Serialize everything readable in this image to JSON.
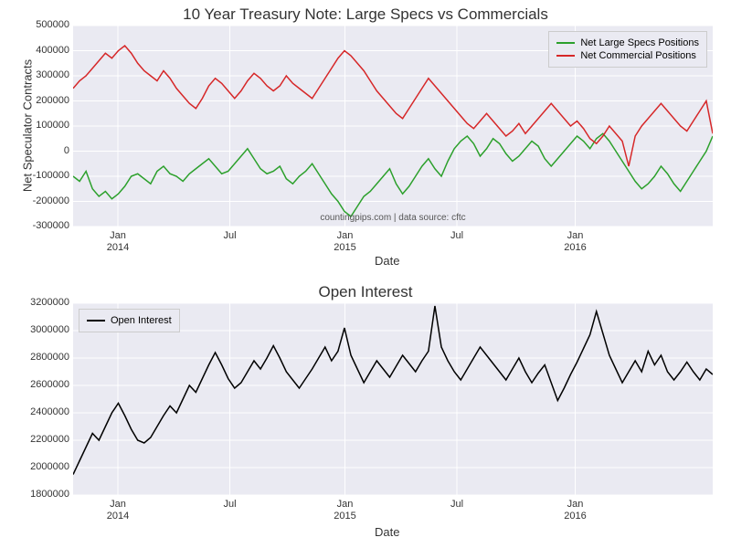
{
  "chart1": {
    "type": "line",
    "title": "10 Year Treasury Note: Large Specs vs Commercials",
    "title_fontsize": 17,
    "xlabel": "Date",
    "ylabel": "Net Speculator Contracts",
    "label_fontsize": 13,
    "background_color": "#eaeaf2",
    "grid_color": "#ffffff",
    "ylim": [
      -300000,
      500000
    ],
    "yticks": [
      -300000,
      -200000,
      -100000,
      0,
      100000,
      200000,
      300000,
      400000,
      500000
    ],
    "xticks_major": [
      "Jan\n2014",
      "Jul",
      "Jan\n2015",
      "Jul",
      "Jan\n2016"
    ],
    "xtick_positions": [
      0.07,
      0.245,
      0.425,
      0.6,
      0.785
    ],
    "annotation": "countingpips.com | data source: cftc",
    "legend_position": "top-right",
    "series": [
      {
        "label": "Net Large Specs Positions",
        "color": "#2ca02c",
        "line_width": 1.5,
        "values": [
          -100000,
          -120000,
          -80000,
          -150000,
          -180000,
          -160000,
          -190000,
          -170000,
          -140000,
          -100000,
          -90000,
          -110000,
          -130000,
          -80000,
          -60000,
          -90000,
          -100000,
          -120000,
          -90000,
          -70000,
          -50000,
          -30000,
          -60000,
          -90000,
          -80000,
          -50000,
          -20000,
          10000,
          -30000,
          -70000,
          -90000,
          -80000,
          -60000,
          -110000,
          -130000,
          -100000,
          -80000,
          -50000,
          -90000,
          -130000,
          -170000,
          -200000,
          -240000,
          -260000,
          -220000,
          -180000,
          -160000,
          -130000,
          -100000,
          -70000,
          -130000,
          -170000,
          -140000,
          -100000,
          -60000,
          -30000,
          -70000,
          -100000,
          -40000,
          10000,
          40000,
          60000,
          30000,
          -20000,
          10000,
          50000,
          30000,
          -10000,
          -40000,
          -20000,
          10000,
          40000,
          20000,
          -30000,
          -60000,
          -30000,
          0,
          30000,
          60000,
          40000,
          10000,
          50000,
          70000,
          40000,
          0,
          -40000,
          -80000,
          -120000,
          -150000,
          -130000,
          -100000,
          -60000,
          -90000,
          -130000,
          -160000,
          -120000,
          -80000,
          -40000,
          0,
          60000
        ]
      },
      {
        "label": "Net Commercial Positions",
        "color": "#d62728",
        "line_width": 1.5,
        "values": [
          250000,
          280000,
          300000,
          330000,
          360000,
          390000,
          370000,
          400000,
          420000,
          390000,
          350000,
          320000,
          300000,
          280000,
          320000,
          290000,
          250000,
          220000,
          190000,
          170000,
          210000,
          260000,
          290000,
          270000,
          240000,
          210000,
          240000,
          280000,
          310000,
          290000,
          260000,
          240000,
          260000,
          300000,
          270000,
          250000,
          230000,
          210000,
          250000,
          290000,
          330000,
          370000,
          400000,
          380000,
          350000,
          320000,
          280000,
          240000,
          210000,
          180000,
          150000,
          130000,
          170000,
          210000,
          250000,
          290000,
          260000,
          230000,
          200000,
          170000,
          140000,
          110000,
          90000,
          120000,
          150000,
          120000,
          90000,
          60000,
          80000,
          110000,
          70000,
          100000,
          130000,
          160000,
          190000,
          160000,
          130000,
          100000,
          120000,
          90000,
          50000,
          30000,
          60000,
          100000,
          70000,
          40000,
          -60000,
          60000,
          100000,
          130000,
          160000,
          190000,
          160000,
          130000,
          100000,
          80000,
          120000,
          160000,
          200000,
          70000
        ]
      }
    ]
  },
  "chart2": {
    "type": "line",
    "title": "Open Interest",
    "title_fontsize": 17,
    "xlabel": "Date",
    "ylabel": "",
    "background_color": "#eaeaf2",
    "grid_color": "#ffffff",
    "ylim": [
      1800000,
      3200000
    ],
    "yticks": [
      1800000,
      2000000,
      2200000,
      2400000,
      2600000,
      2800000,
      3000000,
      3200000
    ],
    "xticks_major": [
      "Jan\n2014",
      "Jul",
      "Jan\n2015",
      "Jul",
      "Jan\n2016"
    ],
    "xtick_positions": [
      0.07,
      0.245,
      0.425,
      0.6,
      0.785
    ],
    "legend_position": "top-left",
    "series": [
      {
        "label": "Open Interest",
        "color": "#000000",
        "line_width": 1.5,
        "values": [
          1950000,
          2050000,
          2150000,
          2250000,
          2200000,
          2300000,
          2400000,
          2470000,
          2380000,
          2280000,
          2200000,
          2180000,
          2220000,
          2300000,
          2380000,
          2450000,
          2400000,
          2500000,
          2600000,
          2550000,
          2650000,
          2750000,
          2840000,
          2750000,
          2650000,
          2580000,
          2620000,
          2700000,
          2780000,
          2720000,
          2800000,
          2890000,
          2800000,
          2700000,
          2640000,
          2580000,
          2650000,
          2720000,
          2800000,
          2880000,
          2780000,
          2850000,
          3020000,
          2820000,
          2720000,
          2620000,
          2700000,
          2780000,
          2720000,
          2660000,
          2740000,
          2820000,
          2760000,
          2700000,
          2780000,
          2850000,
          3180000,
          2880000,
          2780000,
          2700000,
          2640000,
          2720000,
          2800000,
          2880000,
          2820000,
          2760000,
          2700000,
          2640000,
          2720000,
          2800000,
          2700000,
          2620000,
          2690000,
          2750000,
          2620000,
          2490000,
          2580000,
          2680000,
          2770000,
          2870000,
          2970000,
          3140000,
          2980000,
          2820000,
          2720000,
          2620000,
          2700000,
          2780000,
          2700000,
          2850000,
          2750000,
          2820000,
          2700000,
          2640000,
          2700000,
          2770000,
          2700000,
          2640000,
          2720000,
          2680000
        ]
      }
    ]
  }
}
